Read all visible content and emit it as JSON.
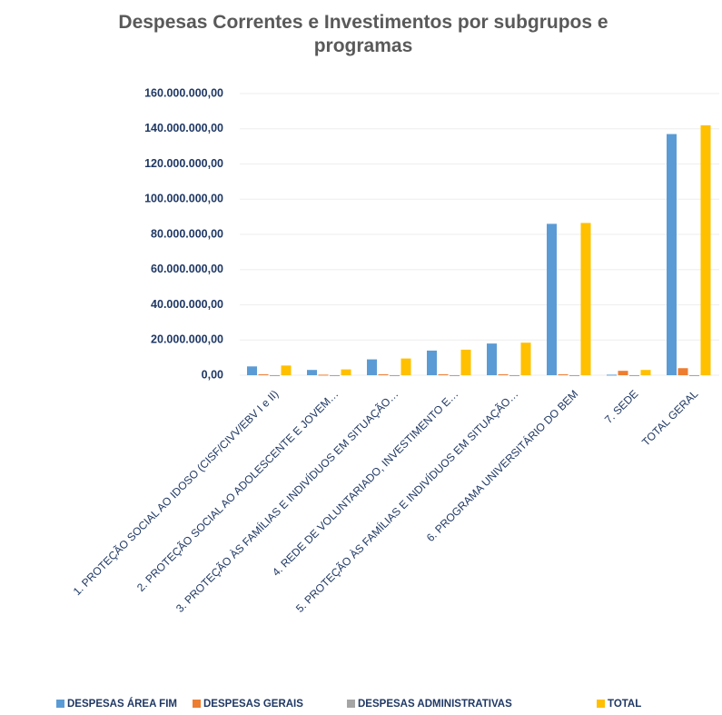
{
  "chart_data": {
    "type": "bar",
    "title": "Despesas Correntes e Investimentos por subgrupos e programas",
    "categories": [
      "1. PROTEÇÃO SOCIAL AO IDOSO (CISF/CIVV/EBV I e II)",
      "2. PROTEÇÃO SOCIAL AO ADOLESCENTE E JOVEM…",
      "3. PROTEÇÃO ÀS FAMÍLIAS E INDIVÍDUOS EM SITUAÇÃO…",
      "4. REDE DE VOLUNTARIADO, INVESTIMENTO E…",
      "5. PROTEÇÃO ÀS FAMÍLIAS E INDIVÍDUOS EM SITUAÇÃO…",
      "6. PROGRAMA UNIVERSITÁRIO DO BEM",
      "7. SEDE",
      "TOTAL GERAL"
    ],
    "series": [
      {
        "name": "DESPESAS ÁREA FIM",
        "color": "#5b9bd5",
        "values": [
          5000000,
          3000000,
          9000000,
          14000000,
          18000000,
          86000000,
          300000,
          137000000
        ]
      },
      {
        "name": "DESPESAS GERAIS",
        "color": "#ed7d31",
        "values": [
          500000,
          300000,
          500000,
          500000,
          500000,
          500000,
          2500000,
          4000000
        ]
      },
      {
        "name": "DESPESAS ADMINISTRATIVAS",
        "color": "#a5a5a5",
        "values": [
          0,
          0,
          0,
          0,
          0,
          0,
          0,
          0
        ]
      },
      {
        "name": "TOTAL",
        "color": "#ffc000",
        "values": [
          5500000,
          3300000,
          9500000,
          14500000,
          18500000,
          86500000,
          3000000,
          142000000
        ]
      }
    ],
    "ylim": [
      0,
      160000000
    ],
    "yticks": [
      {
        "value": 0,
        "label": "0,00"
      },
      {
        "value": 20000000,
        "label": "20.000.000,00"
      },
      {
        "value": 40000000,
        "label": "40.000.000,00"
      },
      {
        "value": 60000000,
        "label": "60.000.000,00"
      },
      {
        "value": 80000000,
        "label": "80.000.000,00"
      },
      {
        "value": 100000000,
        "label": "100.000.000,00"
      },
      {
        "value": 120000000,
        "label": "120.000.000,00"
      },
      {
        "value": 140000000,
        "label": "140.000.000,00"
      },
      {
        "value": 160000000,
        "label": "160.000.000,00"
      }
    ],
    "grid": true,
    "legend": "bottom"
  }
}
